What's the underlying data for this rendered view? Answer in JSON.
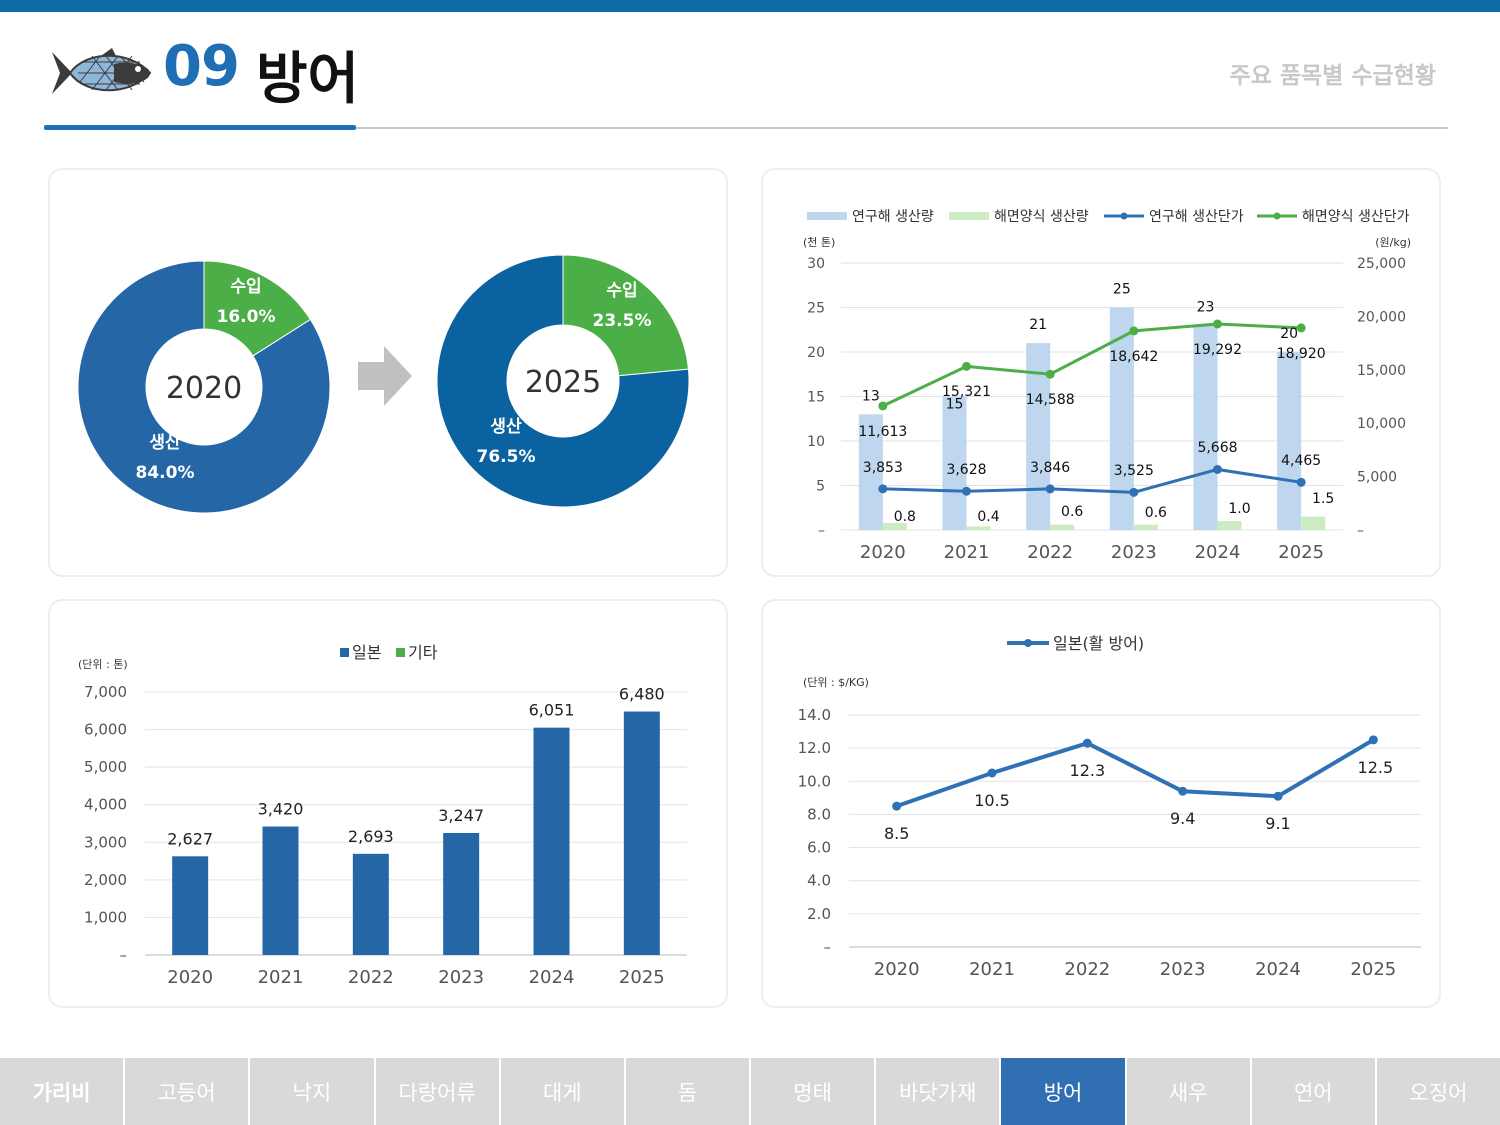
{
  "header": {
    "number": "09",
    "title": "방어",
    "subtitle": "주요 품목별 수급현황"
  },
  "colors": {
    "accent": "#1f6fb5",
    "donut_2020_main": "#2566a7",
    "donut_2025_main": "#0b62a0",
    "import_green": "#4cae47",
    "bar_light_blue": "#bed7ee",
    "bar_light_green": "#cdebc3",
    "line_blue": "#2e71b5",
    "line_green": "#4cae47",
    "bar_blue": "#2566a7",
    "nav_gray": "#d9d9d9",
    "nav_active": "#2f6fb2"
  },
  "icons": [
    "fish-icon",
    "right-arrow-icon"
  ],
  "nav": {
    "items": [
      "가리비",
      "고등어",
      "낙지",
      "다랑어류",
      "대게",
      "돔",
      "명태",
      "바닷가재",
      "방어",
      "새우",
      "연어",
      "오징어"
    ],
    "active": "방어"
  },
  "chart_data": [
    {
      "type": "pie",
      "center_label": "2020",
      "slices": [
        {
          "label": "수입",
          "value": 16.0,
          "display": "16.0%"
        },
        {
          "label": "생산",
          "value": 84.0,
          "display": "84.0%"
        }
      ]
    },
    {
      "type": "pie",
      "center_label": "2025",
      "slices": [
        {
          "label": "수입",
          "value": 23.5,
          "display": "23.5%"
        },
        {
          "label": "생산",
          "value": 76.5,
          "display": "76.5%"
        }
      ]
    },
    {
      "type": "bar",
      "categories": [
        "2020",
        "2021",
        "2022",
        "2023",
        "2024",
        "2025"
      ],
      "y_left_unit": "(천 톤)",
      "y_right_unit": "(원/kg)",
      "y_left_ticks": [
        "–",
        "5",
        "10",
        "15",
        "20",
        "25",
        "30"
      ],
      "y_right_ticks": [
        "–",
        "5,000",
        "10,000",
        "15,000",
        "20,000",
        "25,000"
      ],
      "ylim_left": [
        0,
        30
      ],
      "ylim_right": [
        0,
        25000
      ],
      "series": [
        {
          "name": "연구해 생산량",
          "kind": "bar",
          "axis": "left",
          "values": [
            13,
            15,
            21,
            25,
            23,
            20
          ],
          "labels": [
            "13",
            "15",
            "21",
            "25",
            "23",
            "20"
          ]
        },
        {
          "name": "해면양식 생산량",
          "kind": "bar",
          "axis": "left",
          "values": [
            0.8,
            0.4,
            0.6,
            0.6,
            1.0,
            1.5
          ],
          "labels": [
            "0.8",
            "0.4",
            "0.6",
            "0.6",
            "1.0",
            "1.5"
          ]
        },
        {
          "name": "연구해 생산단가",
          "kind": "line",
          "axis": "right",
          "values": [
            3853,
            3628,
            3846,
            3525,
            5668,
            4465
          ],
          "labels": [
            "3,853",
            "3,628",
            "3,846",
            "3,525",
            "5,668",
            "4,465"
          ]
        },
        {
          "name": "해면양식 생산단가",
          "kind": "line",
          "axis": "right",
          "values": [
            11613,
            15321,
            14588,
            18642,
            19292,
            18920
          ],
          "labels": [
            "11,613",
            "15,321",
            "14,588",
            "18,642",
            "19,292",
            "18,920"
          ]
        }
      ]
    },
    {
      "type": "bar",
      "categories": [
        "2020",
        "2021",
        "2022",
        "2023",
        "2024",
        "2025"
      ],
      "unit": "(단위 : 톤)",
      "legend": [
        "일본",
        "기타"
      ],
      "y_ticks": [
        "–",
        "1,000",
        "2,000",
        "3,000",
        "4,000",
        "5,000",
        "6,000",
        "7,000"
      ],
      "ylim": [
        0,
        7000
      ],
      "series": [
        {
          "name": "일본",
          "values": [
            2627,
            3420,
            2693,
            3247,
            6051,
            6480
          ],
          "labels": [
            "2,627",
            "3,420",
            "2,693",
            "3,247",
            "6,051",
            "6,480"
          ]
        }
      ]
    },
    {
      "type": "line",
      "categories": [
        "2020",
        "2021",
        "2022",
        "2023",
        "2024",
        "2025"
      ],
      "unit": "(단위 : $/KG)",
      "y_ticks": [
        "–",
        "2.0",
        "4.0",
        "6.0",
        "8.0",
        "10.0",
        "12.0",
        "14.0"
      ],
      "ylim": [
        0,
        14
      ],
      "series": [
        {
          "name": "일본(활 방어)",
          "values": [
            8.5,
            10.5,
            12.3,
            9.4,
            9.1,
            12.5
          ],
          "labels": [
            "8.5",
            "10.5",
            "12.3",
            "9.4",
            "9.1",
            "12.5"
          ]
        }
      ]
    }
  ]
}
